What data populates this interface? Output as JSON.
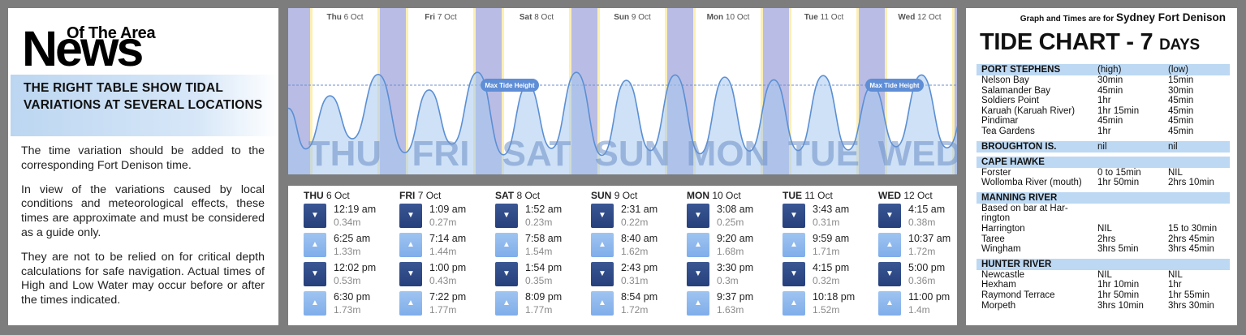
{
  "left": {
    "logo_small": "Of The Area",
    "logo_big": "News",
    "callout": "THE RIGHT TABLE SHOW TIDAL VARIATIONS AT SEVERAL LOCATIONS",
    "paragraphs": [
      "The time variation should be added to the corresponding Fort Denison time.",
      "In view of the variations caused by local conditions and meteorological effects, these times are approximate and must be considered as a guide only.",
      "They are not to be relied on for critical depth calculations for safe navigation. Actual times of High and Low Water may occur before or after the times indicated."
    ]
  },
  "chart": {
    "max_label": "Max Tide Height",
    "days": [
      {
        "abbr": "Thu",
        "date": "6 Oct",
        "big": "THU"
      },
      {
        "abbr": "Fri",
        "date": "7 Oct",
        "big": "FRI"
      },
      {
        "abbr": "Sat",
        "date": "8 Oct",
        "big": "SAT"
      },
      {
        "abbr": "Sun",
        "date": "9 Oct",
        "big": "SUN"
      },
      {
        "abbr": "Mon",
        "date": "10 Oct",
        "big": "MON"
      },
      {
        "abbr": "Tue",
        "date": "11 Oct",
        "big": "TUE"
      },
      {
        "abbr": "Wed",
        "date": "12 Oct",
        "big": "WED"
      }
    ],
    "colors": {
      "night": "#b9bce4",
      "day": "#ffffff",
      "twilight": "#fcefb4",
      "wave_line": "#5b8fd4",
      "wave_fill": "#a8c8ee",
      "pill": "#5f8ed6"
    }
  },
  "table": {
    "days": [
      {
        "dow": "THU",
        "date": "6 Oct",
        "tides": [
          {
            "type": "low",
            "time": "12:19 am",
            "height": "0.34m"
          },
          {
            "type": "high",
            "time": "6:25 am",
            "height": "1.33m"
          },
          {
            "type": "low",
            "time": "12:02 pm",
            "height": "0.53m"
          },
          {
            "type": "high",
            "time": "6:30 pm",
            "height": "1.73m"
          }
        ]
      },
      {
        "dow": "FRI",
        "date": "7 Oct",
        "tides": [
          {
            "type": "low",
            "time": "1:09 am",
            "height": "0.27m"
          },
          {
            "type": "high",
            "time": "7:14 am",
            "height": "1.44m"
          },
          {
            "type": "low",
            "time": "1:00 pm",
            "height": "0.43m"
          },
          {
            "type": "high",
            "time": "7:22 pm",
            "height": "1.77m"
          }
        ]
      },
      {
        "dow": "SAT",
        "date": "8 Oct",
        "tides": [
          {
            "type": "low",
            "time": "1:52 am",
            "height": "0.23m"
          },
          {
            "type": "high",
            "time": "7:58 am",
            "height": "1.54m"
          },
          {
            "type": "low",
            "time": "1:54 pm",
            "height": "0.35m"
          },
          {
            "type": "high",
            "time": "8:09 pm",
            "height": "1.77m"
          }
        ]
      },
      {
        "dow": "SUN",
        "date": "9 Oct",
        "tides": [
          {
            "type": "low",
            "time": "2:31 am",
            "height": "0.22m"
          },
          {
            "type": "high",
            "time": "8:40 am",
            "height": "1.62m"
          },
          {
            "type": "low",
            "time": "2:43 pm",
            "height": "0.31m"
          },
          {
            "type": "high",
            "time": "8:54 pm",
            "height": "1.72m"
          }
        ]
      },
      {
        "dow": "MON",
        "date": "10 Oct",
        "tides": [
          {
            "type": "low",
            "time": "3:08 am",
            "height": "0.25m"
          },
          {
            "type": "high",
            "time": "9:20 am",
            "height": "1.68m"
          },
          {
            "type": "low",
            "time": "3:30 pm",
            "height": "0.3m"
          },
          {
            "type": "high",
            "time": "9:37 pm",
            "height": "1.63m"
          }
        ]
      },
      {
        "dow": "TUE",
        "date": "11 Oct",
        "tides": [
          {
            "type": "low",
            "time": "3:43 am",
            "height": "0.31m"
          },
          {
            "type": "high",
            "time": "9:59 am",
            "height": "1.71m"
          },
          {
            "type": "low",
            "time": "4:15 pm",
            "height": "0.32m"
          },
          {
            "type": "high",
            "time": "10:18 pm",
            "height": "1.52m"
          }
        ]
      },
      {
        "dow": "WED",
        "date": "12 Oct",
        "tides": [
          {
            "type": "low",
            "time": "4:15 am",
            "height": "0.38m"
          },
          {
            "type": "high",
            "time": "10:37 am",
            "height": "1.72m"
          },
          {
            "type": "low",
            "time": "5:00 pm",
            "height": "0.36m"
          },
          {
            "type": "high",
            "time": "11:00 pm",
            "height": "1.4m"
          }
        ]
      }
    ]
  },
  "right": {
    "graph_times_prefix": "Graph and Times are for ",
    "graph_times_location": "Sydney Fort Denison",
    "title_main": "TIDE CHART - 7",
    "title_days": "DAYS",
    "sections": [
      {
        "name": "PORT STEPHENS",
        "h": "(high)",
        "l": "(low)",
        "rows": [
          [
            "Nelson Bay",
            "30min",
            "15min"
          ],
          [
            "Salamander Bay",
            "45min",
            "30min"
          ],
          [
            "Soldiers Point",
            "1hr",
            "45min"
          ],
          [
            "Karuah (Karuah River)",
            "1hr 15min",
            "45min"
          ],
          [
            "Pindimar",
            "45min",
            "45min"
          ],
          [
            "Tea Gardens",
            "1hr",
            "45min"
          ]
        ]
      },
      {
        "name": "BROUGHTON IS.",
        "h": "nil",
        "l": "nil",
        "rows": []
      },
      {
        "name": "CAPE HAWKE",
        "h": "",
        "l": "",
        "rows": [
          [
            "Forster",
            "0 to 15min",
            "NIL"
          ],
          [
            "Wollomba River (mouth)",
            "1hr 50min",
            "2hrs 10min"
          ]
        ]
      },
      {
        "name": "MANNING RIVER",
        "h": "",
        "l": "",
        "rows": [
          [
            "Based on bar at Har-",
            "",
            ""
          ],
          [
            "rington",
            "",
            ""
          ],
          [
            "Harrington",
            "NIL",
            "15 to 30min"
          ],
          [
            "Taree",
            "2hrs",
            "2hrs 45min"
          ],
          [
            "Wingham",
            "3hrs 5min",
            "3hrs 45min"
          ]
        ]
      },
      {
        "name": "HUNTER RIVER",
        "h": "",
        "l": "",
        "rows": [
          [
            "Newcastle",
            "NIL",
            "NIL"
          ],
          [
            "Hexham",
            "1hr 10min",
            "1hr"
          ],
          [
            "Raymond Terrace",
            "1hr 50min",
            "1hr 55min"
          ],
          [
            "Morpeth",
            "3hrs 10min",
            "3hrs 30min"
          ]
        ]
      }
    ]
  }
}
